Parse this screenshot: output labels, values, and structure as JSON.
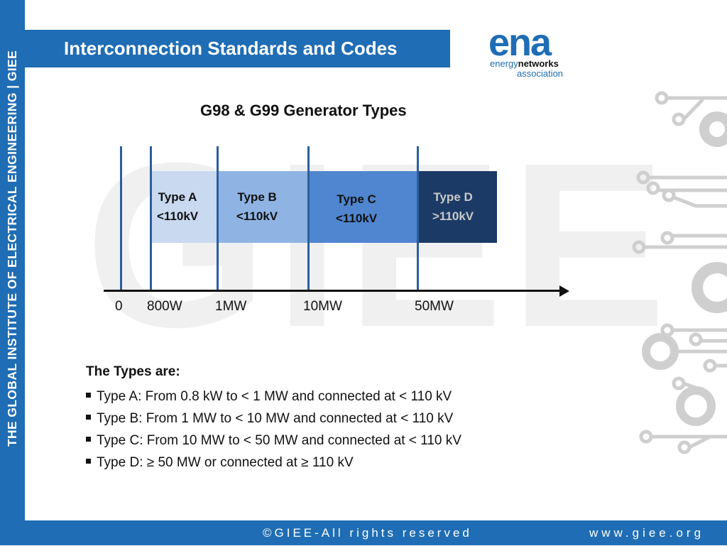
{
  "side_text": "THE GLOBAL INSTITUTE OF ELECTRICAL ENGINEERING | GIEE",
  "header": {
    "title": "Interconnection Standards and Codes"
  },
  "logo": {
    "main": "ena",
    "line1_a": "energy",
    "line1_b": "networks",
    "line2": "association"
  },
  "watermark": "GIEE",
  "diagram": {
    "title": "G98 & G99 Generator Types",
    "bands": [
      {
        "name": "Type A",
        "voltage": "<110kV"
      },
      {
        "name": "Type B",
        "voltage": "<110kV"
      },
      {
        "name": "Type C",
        "voltage": "<110kV"
      },
      {
        "name": "Type D",
        "voltage": ">110kV"
      }
    ],
    "axis_labels": [
      "0",
      "800W",
      "1MW",
      "10MW",
      "50MW"
    ]
  },
  "types": {
    "heading": "The Types are:",
    "items": [
      "Type A: From 0.8 kW to < 1 MW and connected at < 110 kV",
      "Type B: From 1 MW to < 10 MW and connected at < 110 kV",
      "Type C: From 10 MW to < 50 MW and connected at < 110 kV",
      "Type D: ≥ 50 MW or connected at ≥ 110 kV"
    ]
  },
  "footer": {
    "copyright": "©GIEE-All rights reserved",
    "website": "www.giee.org"
  },
  "colors": {
    "brand_blue": "#1f6db4",
    "type_a": "#c8d9f0",
    "type_b": "#8fb4e3",
    "type_c": "#4f86cf",
    "type_d": "#1b3a66"
  }
}
